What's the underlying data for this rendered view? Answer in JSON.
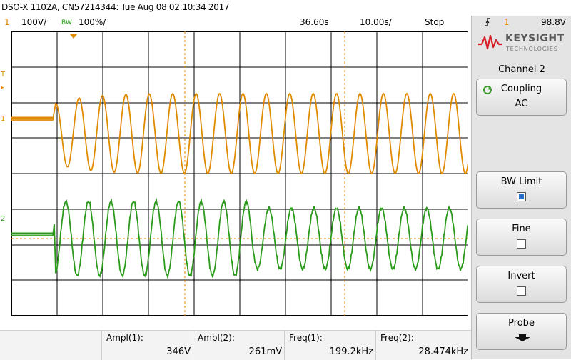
{
  "title": "DSO-X 1102A, CN57214344: Tue Aug 08 02:10:34 2017",
  "status": {
    "ch1_num": "1",
    "ch1_scale": "100V/",
    "bw_tag": "BW",
    "ch2_scale": "100%/",
    "time_pos": "36.60s",
    "time_scale": "10.00s/",
    "run_state": "Stop",
    "trigger_icon": "rising-edge-trigger-icon",
    "trig_ch": "1",
    "trig_level": "98.8V"
  },
  "channel_markers": {
    "trigger_level": "T",
    "ch1": "1",
    "ch2": "2"
  },
  "measurements": [
    {
      "label": "Ampl(1):",
      "value": "346V"
    },
    {
      "label": "Ampl(2):",
      "value": "261mV"
    },
    {
      "label": "Freq(1):",
      "value": "199.2kHz"
    },
    {
      "label": "Freq(2):",
      "value": "28.474kHz"
    }
  ],
  "panel": {
    "brand_name": "KEYSIGHT",
    "brand_sub": "TECHNOLOGIES",
    "title": "Channel 2",
    "softkeys": [
      {
        "label": "Coupling",
        "value": "AC",
        "icon": "rotate-knob-icon"
      },
      {
        "label": "BW Limit",
        "checked": true
      },
      {
        "label": "Fine",
        "checked": false
      },
      {
        "label": "Invert",
        "checked": false
      },
      {
        "label": "Probe",
        "icon": "down-arrow-icon"
      }
    ]
  },
  "colors": {
    "ch1": "#e08a00",
    "ch2": "#2a9a1a",
    "grid": "#000000",
    "brand": "#d9202a"
  }
}
